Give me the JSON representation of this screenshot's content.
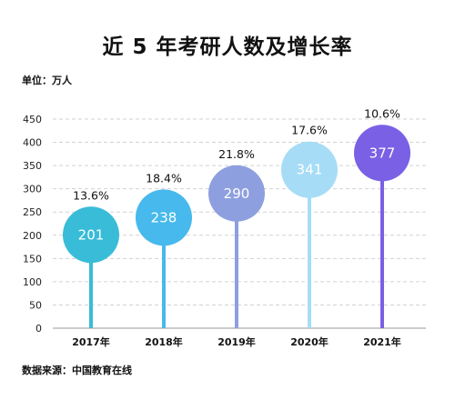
{
  "title": "近 5 年考研人数及增长率",
  "unit_label": "单位：万人",
  "source_label": "数据来源：中国教育在线",
  "chart_data": {
    "type": "bar",
    "title": "近 5 年考研人数及增长率",
    "xlabel": "",
    "ylabel": "",
    "ylim": [
      0,
      450
    ],
    "yticks": [
      0,
      50,
      100,
      150,
      200,
      250,
      300,
      350,
      400,
      450
    ],
    "grid": true,
    "categories": [
      "2017年",
      "2018年",
      "2019年",
      "2020年",
      "2021年"
    ],
    "series": [
      {
        "values": [
          201,
          238,
          290,
          341,
          377
        ]
      }
    ],
    "growth_labels": [
      "13.6%",
      "18.4%",
      "21.8%",
      "17.6%",
      "10.6%"
    ],
    "colors": [
      "#39bcd8",
      "#47b9ec",
      "#8e9fdf",
      "#a6dcf6",
      "#7a60e4"
    ]
  }
}
